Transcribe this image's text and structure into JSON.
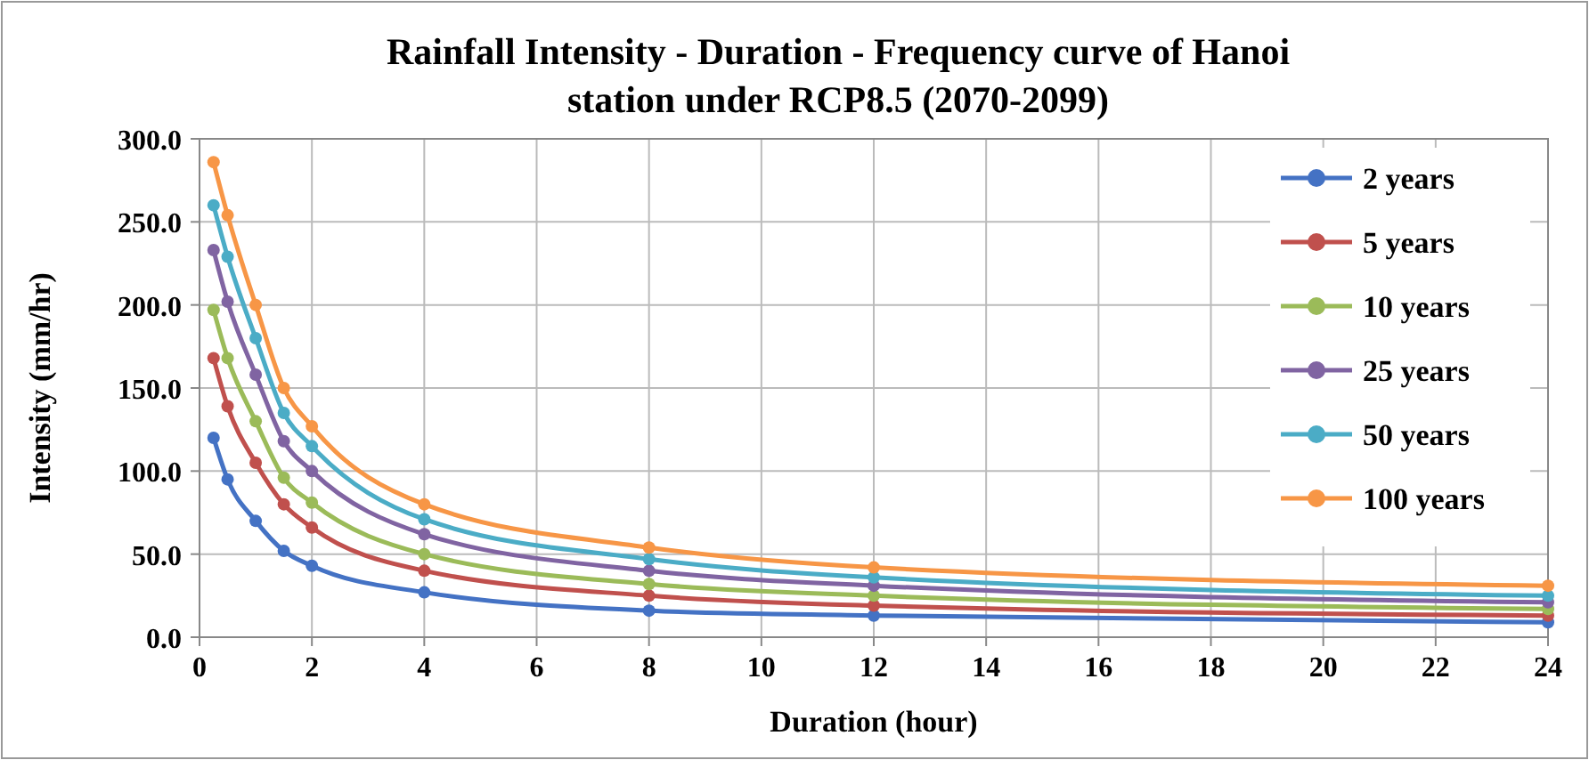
{
  "chart_data": {
    "type": "line",
    "title": "Rainfall Intensity - Duration - Frequency curve of Hanoi station under RCP8.5 (2070-2099)",
    "xlabel": "Duration (hour)",
    "ylabel": "Intensity (mm/hr)",
    "x": [
      0.25,
      0.5,
      1,
      1.5,
      2,
      4,
      8,
      12,
      24
    ],
    "series": [
      {
        "name": "2 years",
        "color": "#4472c4",
        "values": [
          120,
          95,
          70,
          52,
          43,
          27,
          16,
          13,
          9
        ]
      },
      {
        "name": "5 years",
        "color": "#c0504d",
        "values": [
          168,
          139,
          105,
          80,
          66,
          40,
          25,
          19,
          13
        ]
      },
      {
        "name": "10 years",
        "color": "#9bbb59",
        "values": [
          197,
          168,
          130,
          96,
          81,
          50,
          32,
          25,
          17
        ]
      },
      {
        "name": "25 years",
        "color": "#8064a2",
        "values": [
          233,
          202,
          158,
          118,
          100,
          62,
          40,
          31,
          21
        ]
      },
      {
        "name": "50 years",
        "color": "#4bacc6",
        "values": [
          260,
          229,
          180,
          135,
          115,
          71,
          47,
          36,
          25
        ]
      },
      {
        "name": "100 years",
        "color": "#f79646",
        "values": [
          286,
          254,
          200,
          150,
          127,
          80,
          54,
          42,
          31
        ]
      }
    ],
    "xlim": [
      0,
      24
    ],
    "xticks": [
      0,
      2,
      4,
      6,
      8,
      10,
      12,
      14,
      16,
      18,
      20,
      22,
      24
    ],
    "ylim": [
      0,
      300
    ],
    "yticks": [
      {
        "value": 0,
        "label": "0.0"
      },
      {
        "value": 50,
        "label": "50.0"
      },
      {
        "value": 100,
        "label": "100.0"
      },
      {
        "value": 150,
        "label": "150.0"
      },
      {
        "value": 200,
        "label": "200.0"
      },
      {
        "value": 250,
        "label": "250.0"
      },
      {
        "value": 300,
        "label": "300.0"
      }
    ],
    "grid": true,
    "legend": "top right",
    "marker": "circle",
    "line_style": "solid"
  }
}
